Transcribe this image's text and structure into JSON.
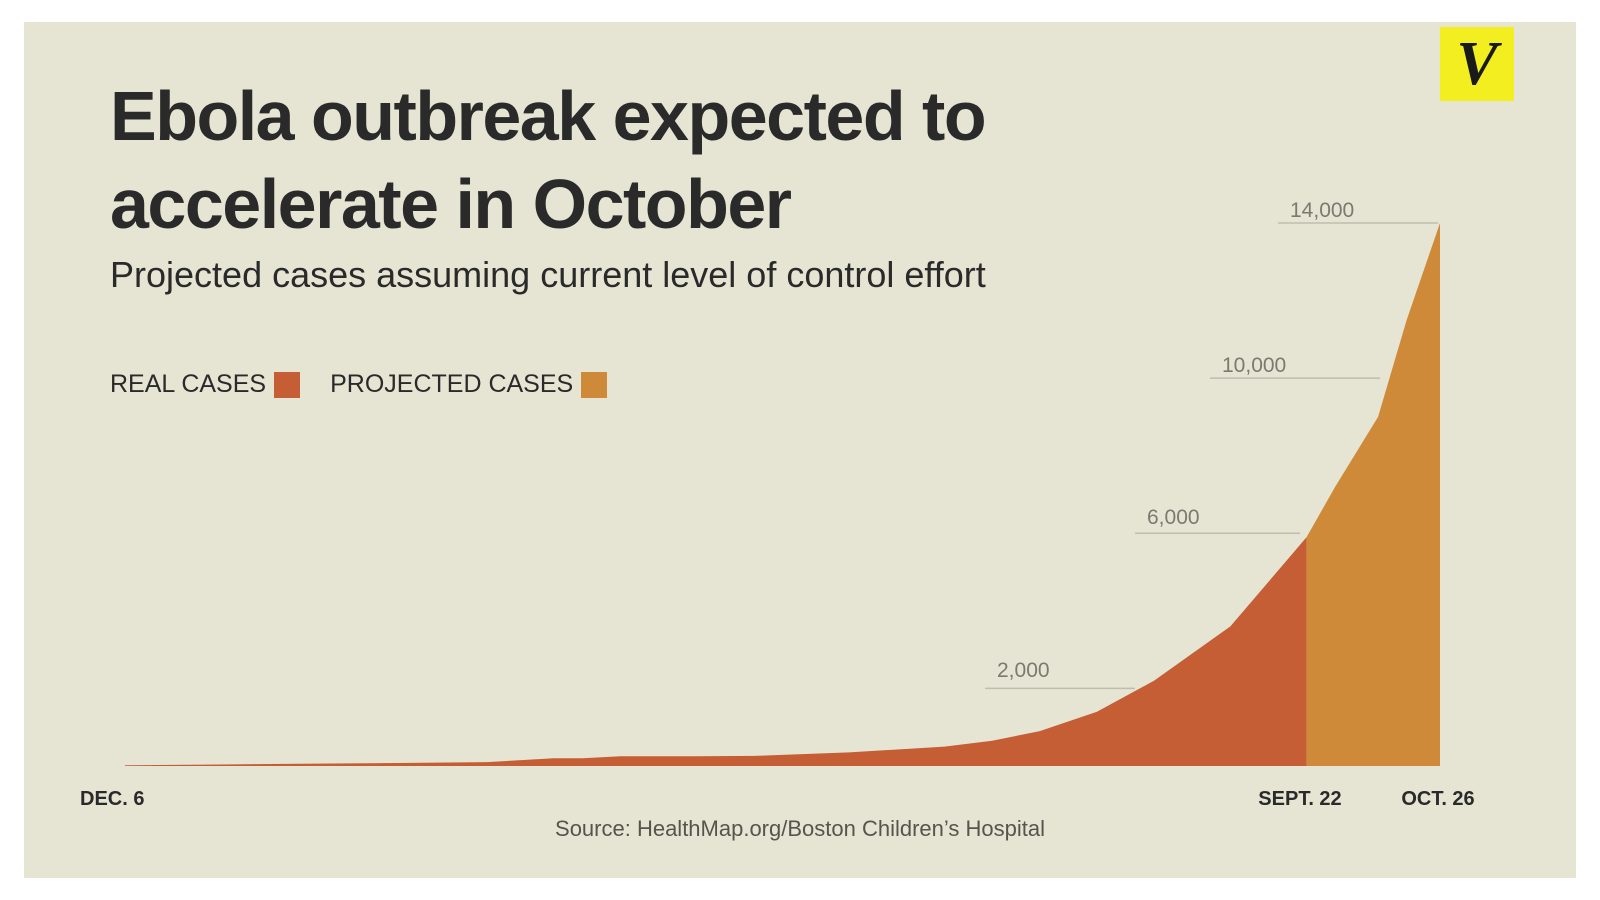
{
  "brand": {
    "logo_letter": "V",
    "logo_color": "#f2ee1f"
  },
  "title": "Ebola outbreak expected to accelerate in October",
  "subtitle": "Projected cases assuming current level of control effort",
  "legend": [
    {
      "label": "REAL CASES",
      "color": "#c55e35"
    },
    {
      "label": "PROJECTED CASES",
      "color": "#cf8a39"
    }
  ],
  "source": "Source: HealthMap.org/Boston Children’s Hospital",
  "chart_data": {
    "type": "area",
    "x_labels": [
      "DEC. 6",
      "SEPT. 22",
      "OCT. 26"
    ],
    "ylim": [
      0,
      15000
    ],
    "grid": false,
    "legend_placement": "top-left",
    "reference_values": [
      "2,000",
      "6,000",
      "10,000",
      "14,000"
    ],
    "series": [
      {
        "name": "REAL CASES",
        "color": "#c55e35",
        "points": [
          [
            0,
            20
          ],
          [
            100,
            40
          ],
          [
            200,
            60
          ],
          [
            300,
            80
          ],
          [
            380,
            100
          ],
          [
            450,
            200
          ],
          [
            480,
            200
          ],
          [
            520,
            250
          ],
          [
            600,
            250
          ],
          [
            660,
            260
          ],
          [
            760,
            350
          ],
          [
            860,
            500
          ],
          [
            910,
            650
          ],
          [
            960,
            900
          ],
          [
            1020,
            1400
          ],
          [
            1080,
            2200
          ],
          [
            1160,
            3600
          ],
          [
            1240,
            5900
          ]
        ]
      },
      {
        "name": "PROJECTED CASES",
        "color": "#cf8a39",
        "points": [
          [
            1240,
            5900
          ],
          [
            1270,
            7200
          ],
          [
            1315,
            9000
          ],
          [
            1345,
            11500
          ],
          [
            1380,
            14000
          ]
        ]
      }
    ]
  }
}
